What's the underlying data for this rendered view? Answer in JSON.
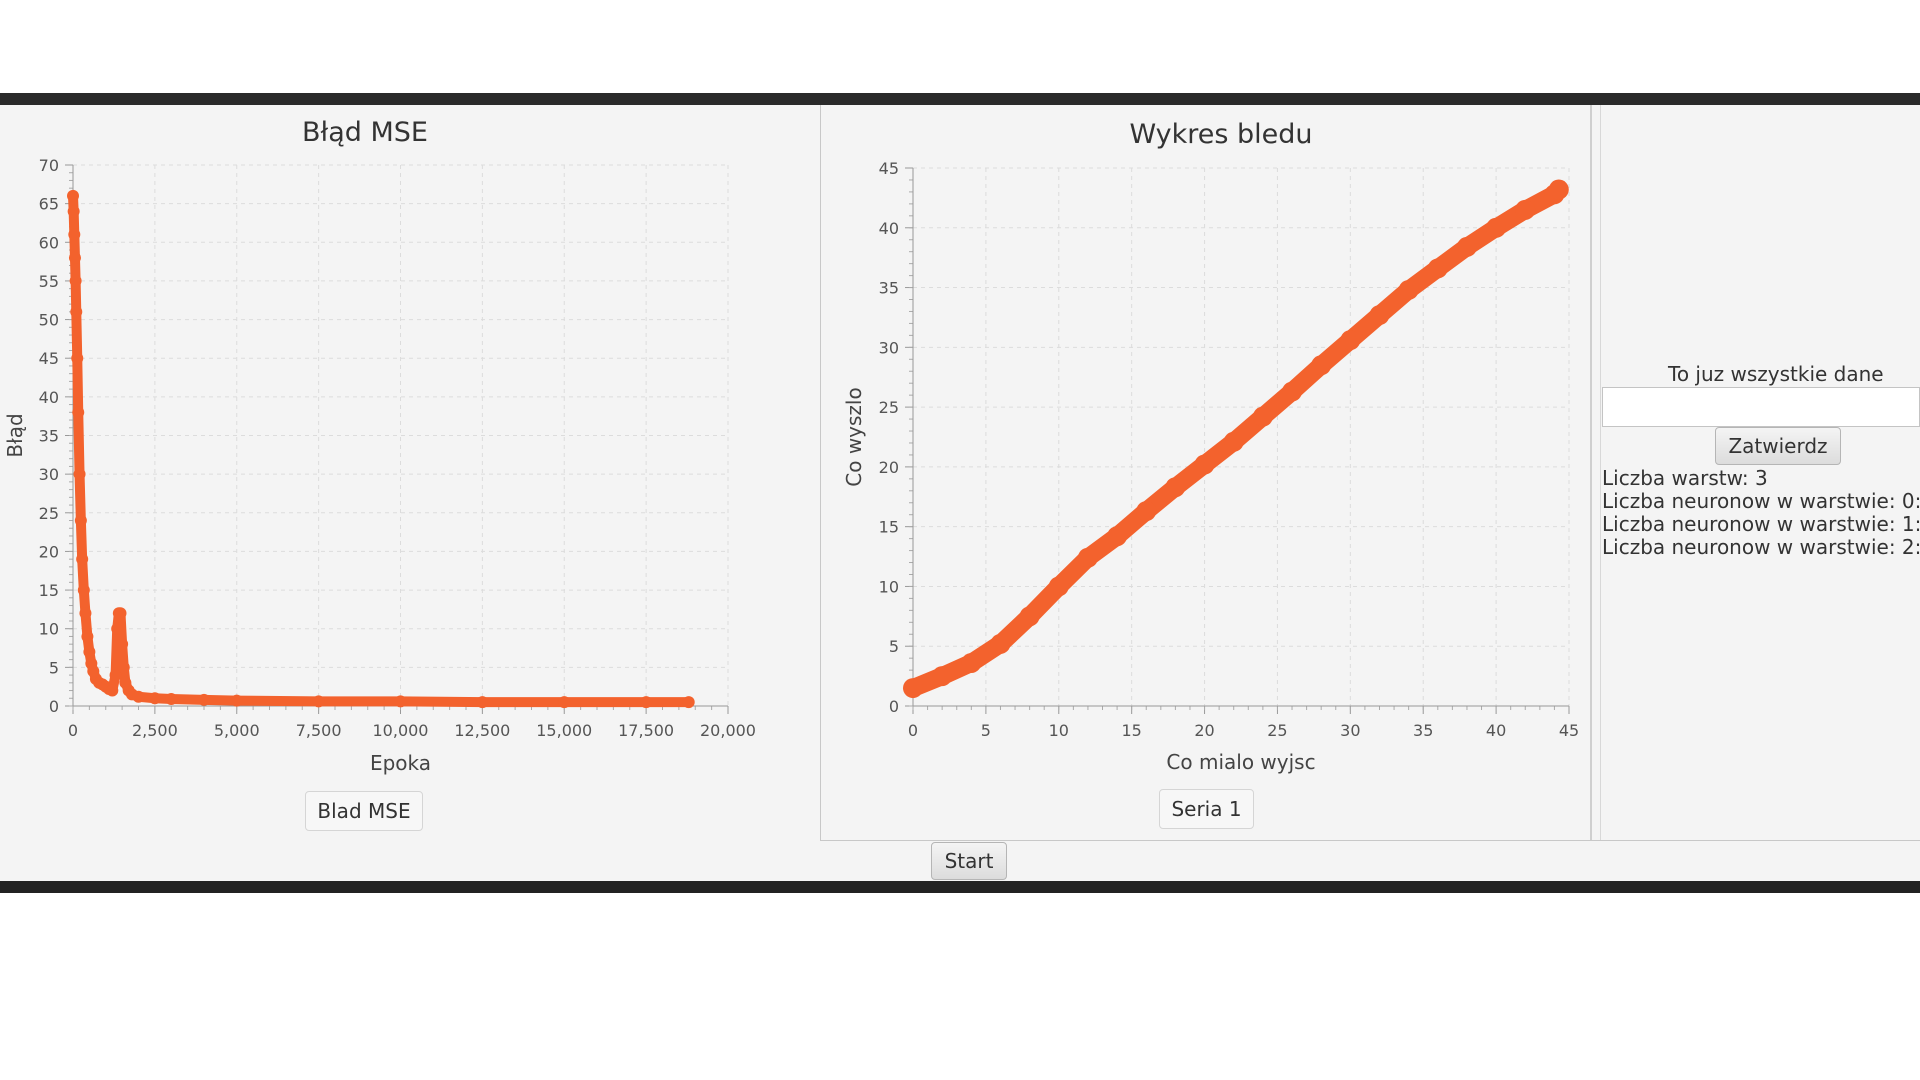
{
  "charts": [
    {
      "type": "scatter",
      "title": "Błąd MSE",
      "xlabel": "Epoka",
      "ylabel": "Błąd",
      "xlim": [
        0,
        20000
      ],
      "ylim": [
        0,
        70
      ],
      "x_ticks": [
        "0",
        "2,500",
        "5,000",
        "7,500",
        "10,000",
        "12,500",
        "15,000",
        "17,500",
        "20,000"
      ],
      "y_ticks": [
        "0",
        "5",
        "10",
        "15",
        "20",
        "25",
        "30",
        "35",
        "40",
        "45",
        "50",
        "55",
        "60",
        "65",
        "70"
      ],
      "grid": true,
      "legend": "bottom",
      "series": [
        {
          "name": "Blad MSE",
          "color": "#f3622d",
          "points": [
            [
              0,
              66
            ],
            [
              20,
              64
            ],
            [
              40,
              61
            ],
            [
              60,
              58
            ],
            [
              80,
              55
            ],
            [
              100,
              51
            ],
            [
              130,
              45
            ],
            [
              160,
              38
            ],
            [
              200,
              30
            ],
            [
              240,
              24
            ],
            [
              280,
              19
            ],
            [
              330,
              15
            ],
            [
              380,
              12
            ],
            [
              440,
              9
            ],
            [
              500,
              7
            ],
            [
              560,
              5.5
            ],
            [
              620,
              4.5
            ],
            [
              700,
              3.5
            ],
            [
              800,
              3
            ],
            [
              900,
              2.8
            ],
            [
              1000,
              2.5
            ],
            [
              1100,
              2.2
            ],
            [
              1200,
              2
            ],
            [
              1300,
              4
            ],
            [
              1350,
              10
            ],
            [
              1400,
              12
            ],
            [
              1450,
              12
            ],
            [
              1500,
              8
            ],
            [
              1550,
              5
            ],
            [
              1600,
              3
            ],
            [
              1700,
              2
            ],
            [
              1800,
              1.5
            ],
            [
              2000,
              1.2
            ],
            [
              2500,
              1
            ],
            [
              3000,
              0.9
            ],
            [
              4000,
              0.8
            ],
            [
              5000,
              0.7
            ],
            [
              7500,
              0.6
            ],
            [
              10000,
              0.6
            ],
            [
              12500,
              0.5
            ],
            [
              15000,
              0.5
            ],
            [
              17500,
              0.5
            ],
            [
              18800,
              0.5
            ]
          ]
        }
      ]
    },
    {
      "type": "scatter",
      "title": "Wykres bledu",
      "xlabel": "Co mialo wyjsc",
      "ylabel": "Co wyszlo",
      "xlim": [
        0,
        45
      ],
      "ylim": [
        0,
        45
      ],
      "x_ticks": [
        "0",
        "5",
        "10",
        "15",
        "20",
        "25",
        "30",
        "35",
        "40",
        "45"
      ],
      "y_ticks": [
        "0",
        "5",
        "10",
        "15",
        "20",
        "25",
        "30",
        "35",
        "40",
        "45"
      ],
      "grid": true,
      "legend": "bottom",
      "series": [
        {
          "name": "Seria 1",
          "color": "#f3622d",
          "points": [
            [
              0,
              1.5
            ],
            [
              2,
              2.5
            ],
            [
              4,
              3.6
            ],
            [
              6,
              5.2
            ],
            [
              8,
              7.5
            ],
            [
              10,
              10
            ],
            [
              12,
              12.4
            ],
            [
              14,
              14.2
            ],
            [
              16,
              16.3
            ],
            [
              18,
              18.3
            ],
            [
              20,
              20.2
            ],
            [
              22,
              22.1
            ],
            [
              24,
              24.2
            ],
            [
              26,
              26.3
            ],
            [
              28,
              28.5
            ],
            [
              30,
              30.6
            ],
            [
              32,
              32.7
            ],
            [
              34,
              34.8
            ],
            [
              36,
              36.6
            ],
            [
              38,
              38.4
            ],
            [
              40,
              40
            ],
            [
              42,
              41.5
            ],
            [
              44,
              42.8
            ],
            [
              44.3,
              43.2
            ]
          ]
        }
      ]
    }
  ],
  "buttons": {
    "start": "Start",
    "submit": "Zatwierdz"
  },
  "side_panel": {
    "header": "To juz wszystkie dane",
    "input_value": "",
    "info": [
      "Liczba warstw: 3",
      "Liczba neuronow w warstwie: 0:",
      "Liczba neuronow w warstwie: 1:",
      "Liczba neuronow w warstwie: 2:"
    ]
  }
}
